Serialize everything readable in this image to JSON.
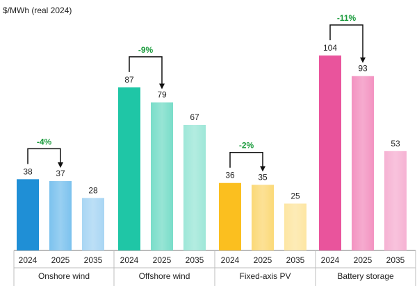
{
  "chart_data": {
    "type": "bar",
    "unit_label": "$/MWh (real 2024)",
    "ylim": [
      0,
      104
    ],
    "grid": false,
    "legend": "none",
    "groups": [
      {
        "name": "Onshore wind",
        "years": [
          "2024",
          "2025",
          "2035"
        ],
        "values": [
          38,
          37,
          28
        ],
        "colors": [
          "#1f8fd6",
          "#7cc2ee",
          "#a9d6f4"
        ],
        "change_label": "-4%"
      },
      {
        "name": "Offshore wind",
        "years": [
          "2024",
          "2025",
          "2035"
        ],
        "values": [
          87,
          79,
          67
        ],
        "colors": [
          "#1fc6a6",
          "#79ddc9",
          "#9ee7d8"
        ],
        "change_label": "-9%"
      },
      {
        "name": "Fixed-axis PV",
        "years": [
          "2024",
          "2025",
          "2035"
        ],
        "values": [
          36,
          35,
          25
        ],
        "colors": [
          "#fbbf1f",
          "#fbd978",
          "#fde6a3"
        ],
        "change_label": "-2%"
      },
      {
        "name": "Battery storage",
        "years": [
          "2024",
          "2025",
          "2035"
        ],
        "values": [
          104,
          93,
          53
        ],
        "colors": [
          "#e9549c",
          "#f393c1",
          "#f6b2d3"
        ],
        "change_label": "-11%"
      }
    ],
    "change_color": "#1a9b3c",
    "arrow_color": "#111111"
  }
}
